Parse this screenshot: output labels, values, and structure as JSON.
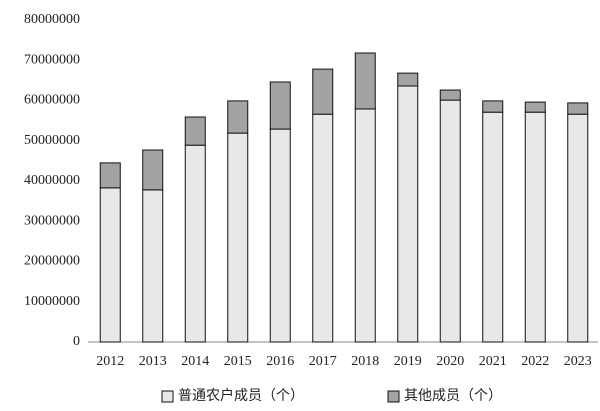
{
  "chart_data": {
    "type": "stacked_bar",
    "categories": [
      "2012",
      "2013",
      "2014",
      "2015",
      "2016",
      "2017",
      "2018",
      "2019",
      "2020",
      "2021",
      "2022",
      "2023"
    ],
    "series": [
      {
        "name": "普通农户成员（个）",
        "color": "#e8e8e8",
        "values": [
          38300000,
          37800000,
          48900000,
          51900000,
          52900000,
          56600000,
          57900000,
          63600000,
          60100000,
          57100000,
          57100000,
          56600000
        ]
      },
      {
        "name": "其他成员（个）",
        "color": "#a3a3a3",
        "values": [
          6200000,
          9900000,
          7000000,
          8000000,
          11700000,
          11200000,
          13900000,
          3200000,
          2500000,
          2800000,
          2500000,
          2800000
        ]
      }
    ],
    "ylim": [
      0,
      80000000
    ],
    "yticks": [
      0,
      10000000,
      20000000,
      30000000,
      40000000,
      50000000,
      60000000,
      70000000,
      80000000
    ],
    "grid": false
  }
}
